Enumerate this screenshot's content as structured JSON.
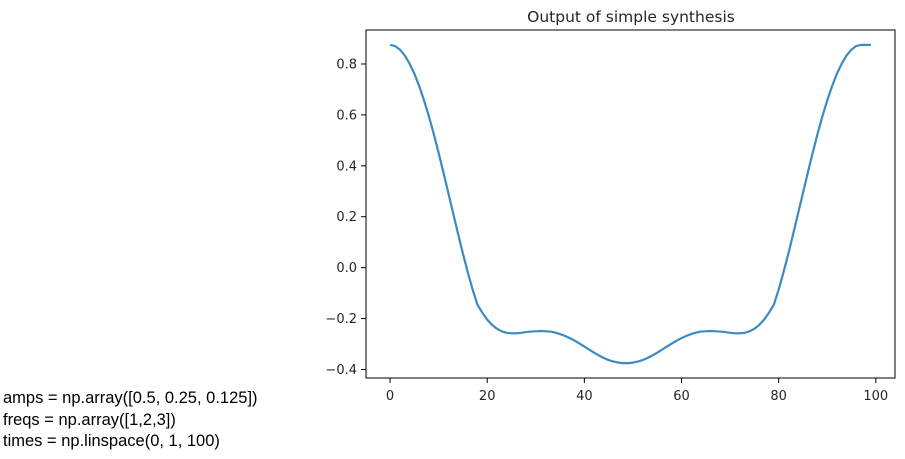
{
  "chart_data": {
    "type": "line",
    "title": "Output of simple synthesis",
    "xlabel": "",
    "ylabel": "",
    "xlim": [
      -4.95,
      103.95
    ],
    "ylim": [
      -0.4335,
      0.9335
    ],
    "xticks": [
      0,
      20,
      40,
      60,
      80,
      100
    ],
    "yticks": [
      -0.4,
      -0.2,
      0.0,
      0.2,
      0.4,
      0.6,
      0.8
    ],
    "xtick_labels": [
      "0",
      "20",
      "40",
      "60",
      "80",
      "100"
    ],
    "ytick_labels": [
      "−0.4",
      "−0.2",
      "0.0",
      "0.2",
      "0.4",
      "0.6",
      "0.8"
    ],
    "grid": false,
    "legend": "none",
    "series": [
      {
        "color": "#3b8bc2",
        "x": [
          0,
          1,
          2,
          3,
          4,
          5,
          6,
          7,
          8,
          9,
          10,
          11,
          12,
          13,
          14,
          15,
          16,
          17,
          18,
          19,
          20,
          21,
          22,
          23,
          24,
          25,
          26,
          27,
          28,
          29,
          30,
          31,
          32,
          33,
          34,
          35,
          36,
          37,
          38,
          39,
          40,
          41,
          42,
          43,
          44,
          45,
          46,
          47,
          48,
          49,
          50,
          51,
          52,
          53,
          54,
          55,
          56,
          57,
          58,
          59,
          60,
          61,
          62,
          63,
          64,
          65,
          66,
          67,
          68,
          69,
          70,
          71,
          72,
          73,
          74,
          75,
          76,
          77,
          78,
          79,
          80,
          81,
          82,
          83,
          84,
          85,
          86,
          87,
          88,
          89,
          90,
          91,
          92,
          93,
          94,
          95,
          96,
          97,
          98,
          99
        ],
        "values": [
          0.875,
          0.871,
          0.857,
          0.834,
          0.802,
          0.762,
          0.713,
          0.657,
          0.594,
          0.525,
          0.451,
          0.373,
          0.293,
          0.213,
          0.133,
          0.055,
          -0.018,
          -0.086,
          -0.146,
          -0.177,
          -0.204,
          -0.225,
          -0.24,
          -0.25,
          -0.256,
          -0.258,
          -0.258,
          -0.256,
          -0.253,
          -0.251,
          -0.25,
          -0.249,
          -0.25,
          -0.251,
          -0.255,
          -0.261,
          -0.268,
          -0.277,
          -0.287,
          -0.298,
          -0.31,
          -0.322,
          -0.334,
          -0.345,
          -0.355,
          -0.363,
          -0.369,
          -0.373,
          -0.375,
          -0.375,
          -0.373,
          -0.369,
          -0.363,
          -0.355,
          -0.345,
          -0.334,
          -0.322,
          -0.31,
          -0.298,
          -0.287,
          -0.277,
          -0.268,
          -0.261,
          -0.255,
          -0.251,
          -0.25,
          -0.249,
          -0.25,
          -0.251,
          -0.253,
          -0.256,
          -0.258,
          -0.258,
          -0.256,
          -0.25,
          -0.24,
          -0.225,
          -0.204,
          -0.177,
          -0.146,
          -0.086,
          -0.018,
          0.055,
          0.133,
          0.213,
          0.293,
          0.373,
          0.451,
          0.525,
          0.594,
          0.657,
          0.713,
          0.762,
          0.802,
          0.834,
          0.857,
          0.871,
          0.875,
          0.875,
          0.875
        ]
      }
    ]
  },
  "code": {
    "lines": [
      "amps = np.array([0.5, 0.25, 0.125])",
      "freqs = np.array([1,2,3])",
      "times = np.linspace(0, 1, 100)"
    ]
  }
}
